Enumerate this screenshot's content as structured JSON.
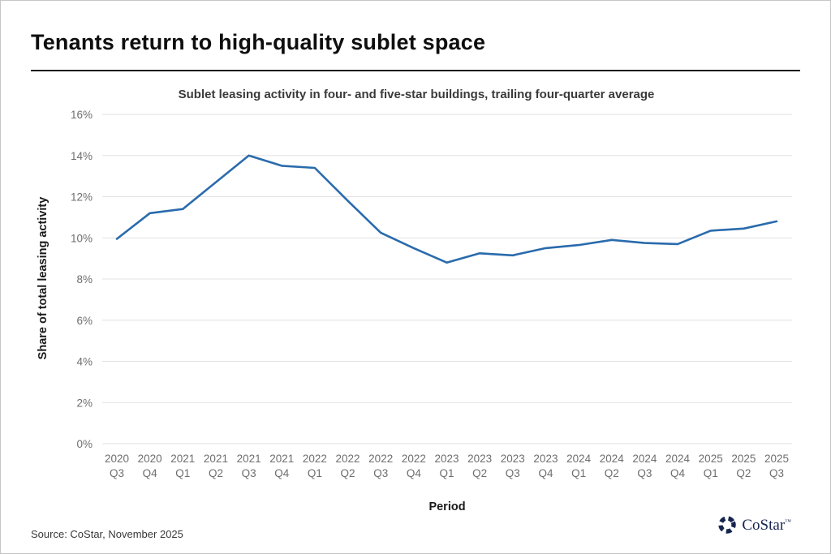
{
  "page": {
    "title": "Tenants return to high-quality sublet space",
    "source": "Source: CoStar, November 2025",
    "logo_text": "CoStar",
    "logo_mark": "™"
  },
  "chart_data": {
    "type": "line",
    "title": "Sublet leasing activity in four- and five-star buildings, trailing four-quarter average",
    "xlabel": "Period",
    "ylabel": "Share of total leasing activity",
    "categories": [
      "2020 Q3",
      "2020 Q4",
      "2021 Q1",
      "2021 Q2",
      "2021 Q3",
      "2021 Q4",
      "2022 Q1",
      "2022 Q2",
      "2022 Q3",
      "2022 Q4",
      "2023 Q1",
      "2023 Q2",
      "2023 Q3",
      "2023 Q4",
      "2024 Q1",
      "2024 Q2",
      "2024 Q3",
      "2024 Q4",
      "2025 Q1",
      "2025 Q2",
      "2025 Q3"
    ],
    "values": [
      9.95,
      11.2,
      11.4,
      12.7,
      14.0,
      13.5,
      13.4,
      11.8,
      10.25,
      9.5,
      8.8,
      9.25,
      9.15,
      9.5,
      9.65,
      9.9,
      9.75,
      9.7,
      10.35,
      10.45,
      10.8
    ],
    "ylim": [
      0,
      16
    ],
    "ytick_step": 2,
    "ytick_labels": [
      "0%",
      "2%",
      "4%",
      "6%",
      "8%",
      "10%",
      "12%",
      "14%",
      "16%"
    ],
    "grid": "horizontal-only",
    "legend": "none",
    "line_color": "#2a6bac",
    "grid_color": "#e2e2e2",
    "tick_color": "#6e6e6e"
  }
}
